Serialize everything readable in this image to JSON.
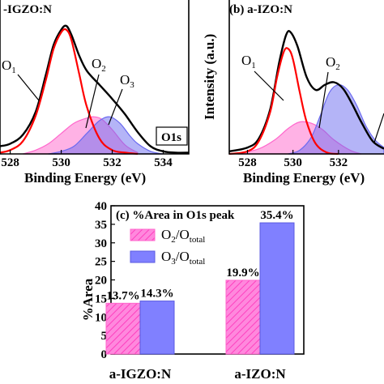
{
  "chart_data": [
    {
      "type": "line",
      "panel_label": "-IGZO:N",
      "xlabel": "Binding Energy (eV)",
      "ylabel": "",
      "xlim": [
        527.6,
        535.0
      ],
      "xticks": [
        "528",
        "530",
        "532",
        "534"
      ],
      "xtick_values": [
        528,
        530,
        532,
        534
      ],
      "box_label": "O1s",
      "component_labels": [
        "O1",
        "O2",
        "O3"
      ],
      "series": [
        {
          "color": "#000000",
          "x": [
            527.6,
            528.0,
            528.5,
            529.0,
            529.4,
            529.7,
            530.0,
            530.2,
            530.4,
            530.7,
            531.0,
            531.5,
            532.0,
            532.5,
            533.0,
            533.5,
            534.0,
            534.5,
            535.0
          ],
          "y": [
            0.06,
            0.08,
            0.15,
            0.33,
            0.62,
            0.85,
            0.97,
            1.0,
            0.93,
            0.77,
            0.65,
            0.54,
            0.43,
            0.31,
            0.17,
            0.06,
            0.02,
            0.01,
            0.01
          ]
        },
        {
          "color": "#ff0000",
          "x": [
            527.6,
            528.0,
            528.5,
            529.0,
            529.4,
            529.7,
            530.0,
            530.2,
            530.4,
            530.7,
            531.0,
            531.5,
            532.0,
            532.5,
            533.0
          ],
          "y": [
            0.01,
            0.03,
            0.1,
            0.3,
            0.58,
            0.82,
            0.95,
            0.97,
            0.89,
            0.63,
            0.37,
            0.12,
            0.03,
            0.01,
            0.0
          ]
        },
        {
          "color": "#ff66cc",
          "fill": true,
          "x": [
            528.5,
            529.0,
            529.5,
            530.0,
            530.5,
            531.0,
            531.3,
            531.6,
            532.0,
            532.5,
            533.0
          ],
          "y": [
            0.0,
            0.03,
            0.08,
            0.16,
            0.24,
            0.28,
            0.29,
            0.27,
            0.19,
            0.07,
            0.01
          ]
        },
        {
          "color": "#6a6af0",
          "fill": true,
          "x": [
            529.5,
            530.0,
            530.5,
            531.0,
            531.5,
            531.9,
            532.3,
            532.7,
            533.0,
            533.5,
            534.0
          ],
          "y": [
            0.0,
            0.02,
            0.06,
            0.16,
            0.26,
            0.29,
            0.24,
            0.14,
            0.08,
            0.02,
            0.0
          ]
        }
      ]
    },
    {
      "type": "line",
      "panel_label": "(b) a-IZO:N",
      "xlabel": "Binding Energy (eV)",
      "ylabel": "Intensity (a.u.)",
      "xlim": [
        527.2,
        534.0
      ],
      "xticks": [
        "528",
        "530",
        "532"
      ],
      "xtick_values": [
        528,
        530,
        532
      ],
      "component_labels": [
        "O1",
        "O2"
      ],
      "series": [
        {
          "color": "#000000",
          "x": [
            527.2,
            528.0,
            528.5,
            529.0,
            529.4,
            529.7,
            529.9,
            530.2,
            530.6,
            531.0,
            531.4,
            531.8,
            532.2,
            532.6,
            533.0,
            533.5,
            534.0
          ],
          "y": [
            0.02,
            0.05,
            0.12,
            0.35,
            0.72,
            0.93,
            0.95,
            0.84,
            0.6,
            0.5,
            0.54,
            0.56,
            0.51,
            0.39,
            0.25,
            0.1,
            0.04
          ]
        },
        {
          "color": "#ff0000",
          "x": [
            527.2,
            528.0,
            528.5,
            529.0,
            529.3,
            529.6,
            529.8,
            530.0,
            530.3,
            530.6,
            531.0,
            531.5,
            532.0
          ],
          "y": [
            0.0,
            0.02,
            0.1,
            0.33,
            0.6,
            0.8,
            0.82,
            0.74,
            0.48,
            0.25,
            0.08,
            0.01,
            0.0
          ]
        },
        {
          "color": "#ff66cc",
          "fill": true,
          "x": [
            527.6,
            528.5,
            529.2,
            529.8,
            530.3,
            530.8,
            531.3,
            531.8,
            532.5,
            533.0
          ],
          "y": [
            0.0,
            0.04,
            0.11,
            0.2,
            0.25,
            0.24,
            0.19,
            0.11,
            0.03,
            0.0
          ]
        },
        {
          "color": "#6a6af0",
          "fill": true,
          "x": [
            529.8,
            530.3,
            530.8,
            531.2,
            531.6,
            532.0,
            532.4,
            532.8,
            533.2,
            533.6,
            534.0
          ],
          "y": [
            0.0,
            0.03,
            0.13,
            0.3,
            0.48,
            0.54,
            0.5,
            0.38,
            0.22,
            0.11,
            0.05
          ]
        }
      ]
    },
    {
      "type": "bar",
      "panel_label": "(c) %Area in O1s peak",
      "categories": [
        "a-IGZO:N",
        "a-IZO:N"
      ],
      "ylabel": "%Area",
      "ylim": [
        0,
        40
      ],
      "yticks": [
        "0",
        "5",
        "10",
        "15",
        "20",
        "25",
        "30",
        "35",
        "40"
      ],
      "ytick_values": [
        0,
        5,
        10,
        15,
        20,
        25,
        30,
        35,
        40
      ],
      "series": [
        {
          "legend_main": "O",
          "legend_sub1": "2",
          "legend_mid": "/O",
          "legend_sub2": "total",
          "color": "#ff66cc",
          "hatch": true,
          "values": [
            13.7,
            19.9
          ],
          "value_labels": [
            "13.7%",
            "19.9%"
          ]
        },
        {
          "legend_main": "O",
          "legend_sub1": "3",
          "legend_mid": "/O",
          "legend_sub2": "total",
          "color": "#8080ff",
          "hatch": false,
          "values": [
            14.3,
            35.4
          ],
          "value_labels": [
            "14.3%",
            "35.4%"
          ]
        }
      ]
    }
  ]
}
